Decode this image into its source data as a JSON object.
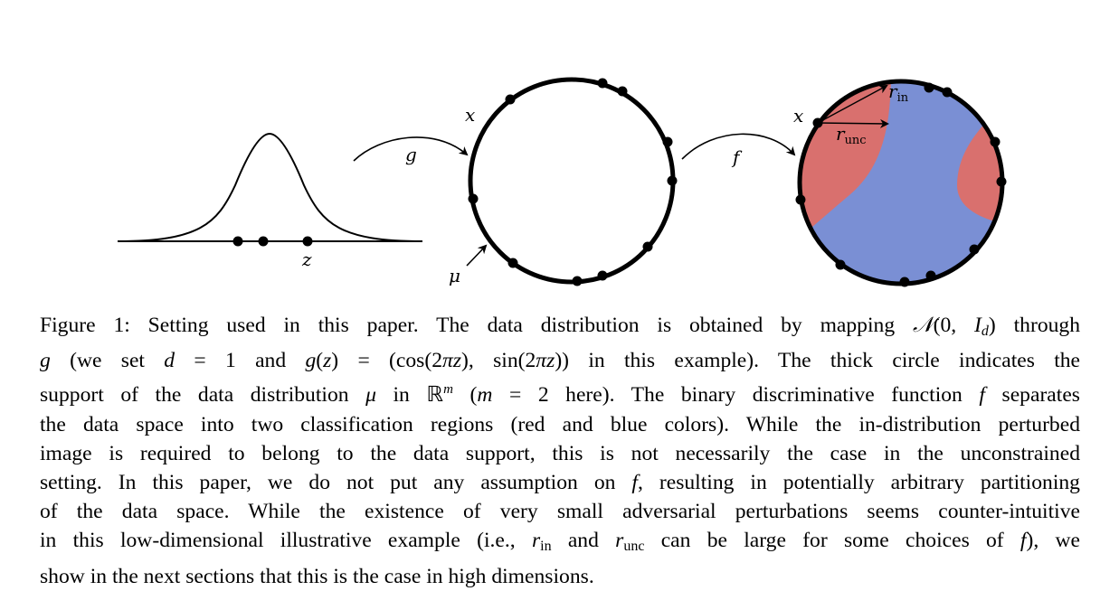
{
  "figure": {
    "labels": {
      "z": "z",
      "g": "g",
      "f": "f",
      "x1": "x",
      "x2": "x",
      "mu": "μ",
      "r_in_base": "r",
      "r_in_sub": "in",
      "r_unc_base": "r",
      "r_unc_sub": "unc"
    },
    "colors": {
      "red_region": "#d9706e",
      "blue_region": "#7a8fd4",
      "stroke": "#000000"
    }
  },
  "caption": {
    "l1_a": "Figure 1: Setting used in this paper. The data distribution is obtained by mapping ",
    "l1_N": "𝒩",
    "l1_b": "(0, ",
    "l1_I": "I",
    "l1_d": "d",
    "l1_c": ") through",
    "l2_g": "g",
    "l2_a": " (we set ",
    "l2_d": "d",
    "l2_b": " = 1 and ",
    "l2_g2": "g",
    "l2_c": "(",
    "l2_z": "z",
    "l2_e": ") = (cos(2",
    "l2_pi": "πz",
    "l2_f": "), sin(2",
    "l2_pi2": "πz",
    "l2_h": ")) in this example). The thick circle indicates the",
    "l3_a": "support of the data distribution ",
    "l3_mu": "μ",
    "l3_b": " in ℝ",
    "l3_m": "m",
    "l3_c": " (",
    "l3_m2": "m",
    "l3_d": " = 2 here). The binary discriminative function ",
    "l3_f": "f",
    "l3_e": " separates",
    "l4": "the data space into two classification regions (red and blue colors). While the in-distribution perturbed",
    "l5": "image is required to belong to the data support, this is not necessarily the case in the unconstrained",
    "l6_a": "setting. In this paper, we do not put any assumption on ",
    "l6_f": "f",
    "l6_b": ", resulting in potentially arbitrary partitioning",
    "l7": "of the data space. While the existence of very small adversarial perturbations seems counter-intuitive",
    "l8_a": "in this low-dimensional illustrative example (i.e., ",
    "l8_r1": "r",
    "l8_in": "in",
    "l8_b": " and ",
    "l8_r2": "r",
    "l8_unc": "unc",
    "l8_c": " can be large for some choices of ",
    "l8_f": "f",
    "l8_d": "), we",
    "l9": "show in the next sections that this is the case in high dimensions."
  }
}
